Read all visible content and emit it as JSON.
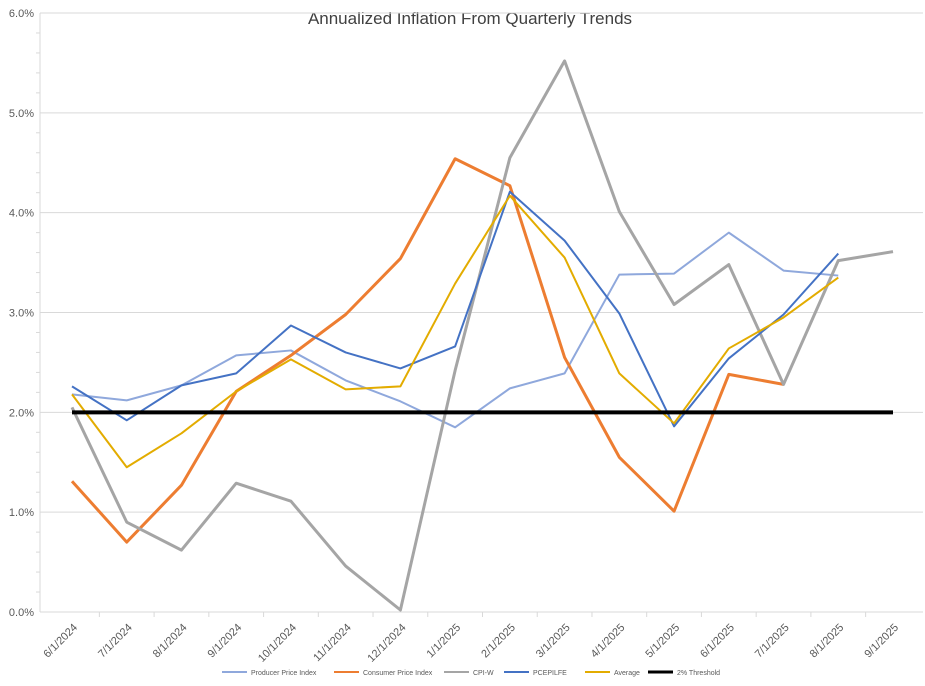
{
  "chart_data": {
    "type": "line",
    "title": "Annualized Inflation From Quarterly Trends",
    "xlabel": "",
    "ylabel": "",
    "categories": [
      "6/1/2024",
      "7/1/2024",
      "8/1/2024",
      "9/1/2024",
      "10/1/2024",
      "11/1/2024",
      "12/1/2024",
      "1/1/2025",
      "2/1/2025",
      "3/1/2025",
      "4/1/2025",
      "5/1/2025",
      "6/1/2025",
      "7/1/2025",
      "8/1/2025",
      "9/1/2025"
    ],
    "ylim": [
      0,
      6
    ],
    "yticks": [
      "0.0%",
      "1.0%",
      "2.0%",
      "3.0%",
      "4.0%",
      "5.0%",
      "6.0%"
    ],
    "grid": true,
    "legend_position": "bottom",
    "series": [
      {
        "name": "Producer Price Index",
        "color": "#8FA8DC",
        "values": [
          2.18,
          2.12,
          2.27,
          2.57,
          2.62,
          2.32,
          2.11,
          1.85,
          2.24,
          2.39,
          3.38,
          3.39,
          3.8,
          3.42,
          3.37,
          null
        ]
      },
      {
        "name": "Consumer Price Index",
        "color": "#ED7D31",
        "values": [
          1.31,
          0.7,
          1.27,
          2.21,
          2.57,
          2.98,
          3.54,
          4.54,
          4.27,
          2.55,
          1.55,
          1.01,
          2.38,
          2.28,
          null,
          null
        ]
      },
      {
        "name": "CPI-W",
        "color": "#A5A5A5",
        "values": [
          2.05,
          0.9,
          0.62,
          1.29,
          1.11,
          0.46,
          0.02,
          2.42,
          4.55,
          5.52,
          4.01,
          3.08,
          3.48,
          2.28,
          3.52,
          3.61
        ]
      },
      {
        "name": "PCEPILFE",
        "color": "#4472C4",
        "values": [
          2.26,
          1.92,
          2.27,
          2.39,
          2.87,
          2.6,
          2.44,
          2.66,
          4.21,
          3.72,
          2.99,
          1.86,
          2.54,
          2.98,
          3.59,
          null
        ]
      },
      {
        "name": "Average",
        "color": "#E3AC00",
        "values": [
          2.18,
          1.45,
          1.79,
          2.21,
          2.53,
          2.23,
          2.26,
          3.29,
          4.17,
          3.55,
          2.39,
          1.89,
          2.64,
          2.95,
          3.35,
          null
        ]
      },
      {
        "name": "2% Threshold",
        "color": "#000000",
        "values": [
          2,
          2,
          2,
          2,
          2,
          2,
          2,
          2,
          2,
          2,
          2,
          2,
          2,
          2,
          2,
          2
        ]
      }
    ]
  }
}
